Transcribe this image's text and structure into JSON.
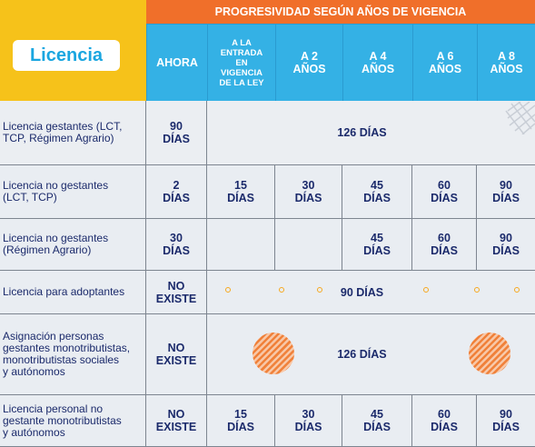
{
  "header": {
    "top_title": "PROGRESIVIDAD SEGÚN AÑOS DE VIGENCIA",
    "licencia": "Licencia",
    "columns": [
      [
        "AHORA"
      ],
      [
        "A LA",
        "ENTRADA",
        "EN",
        "VIGENCIA",
        "DE LA LEY"
      ],
      [
        "A 2",
        "AÑOS"
      ],
      [
        "A 4",
        "AÑOS"
      ],
      [
        "A 6",
        "AÑOS"
      ],
      [
        "A 8",
        "AÑOS"
      ]
    ]
  },
  "rows": [
    {
      "label": [
        "Licencia gestantes (LCT,",
        "TCP, Régimen Agrario)"
      ],
      "ahora": [
        "90",
        "DÍAS"
      ],
      "span": "126 DÍAS"
    },
    {
      "label": [
        "Licencia no gestantes",
        "(LCT, TCP)"
      ],
      "ahora": [
        "2",
        "DÍAS"
      ],
      "cells": [
        [
          "15",
          "DÍAS"
        ],
        [
          "30",
          "DÍAS"
        ],
        [
          "45",
          "DÍAS"
        ],
        [
          "60",
          "DÍAS"
        ],
        [
          "90",
          "DÍAS"
        ]
      ]
    },
    {
      "label": [
        "Licencia no gestantes",
        "(Régimen Agrario)"
      ],
      "ahora": [
        "30",
        "DÍAS"
      ],
      "cells": [
        [],
        [],
        [
          "45",
          "DÍAS"
        ],
        [
          "60",
          "DÍAS"
        ],
        [
          "90",
          "DÍAS"
        ]
      ]
    },
    {
      "label": [
        "Licencia para adoptantes"
      ],
      "ahora": [
        "NO",
        "EXISTE"
      ],
      "span": "90 DÍAS"
    },
    {
      "label": [
        "Asignación personas",
        "gestantes monotributistas,",
        "monotributistas sociales",
        "y autónomos"
      ],
      "ahora": [
        "NO",
        "EXISTE"
      ],
      "span": "126 DÍAS"
    },
    {
      "label": [
        "Licencia personal no",
        "gestante monotributistas",
        "y autónomos"
      ],
      "ahora": [
        "NO",
        "EXISTE"
      ],
      "cells": [
        [
          "15",
          "DÍAS"
        ],
        [
          "30",
          "DÍAS"
        ],
        [
          "45",
          "DÍAS"
        ],
        [
          "60",
          "DÍAS"
        ],
        [
          "90",
          "DÍAS"
        ]
      ]
    }
  ],
  "colors": {
    "yellow": "#f6c21a",
    "orange": "#f06f2a",
    "blue": "#34b1e5",
    "text": "#1b2a6b"
  }
}
